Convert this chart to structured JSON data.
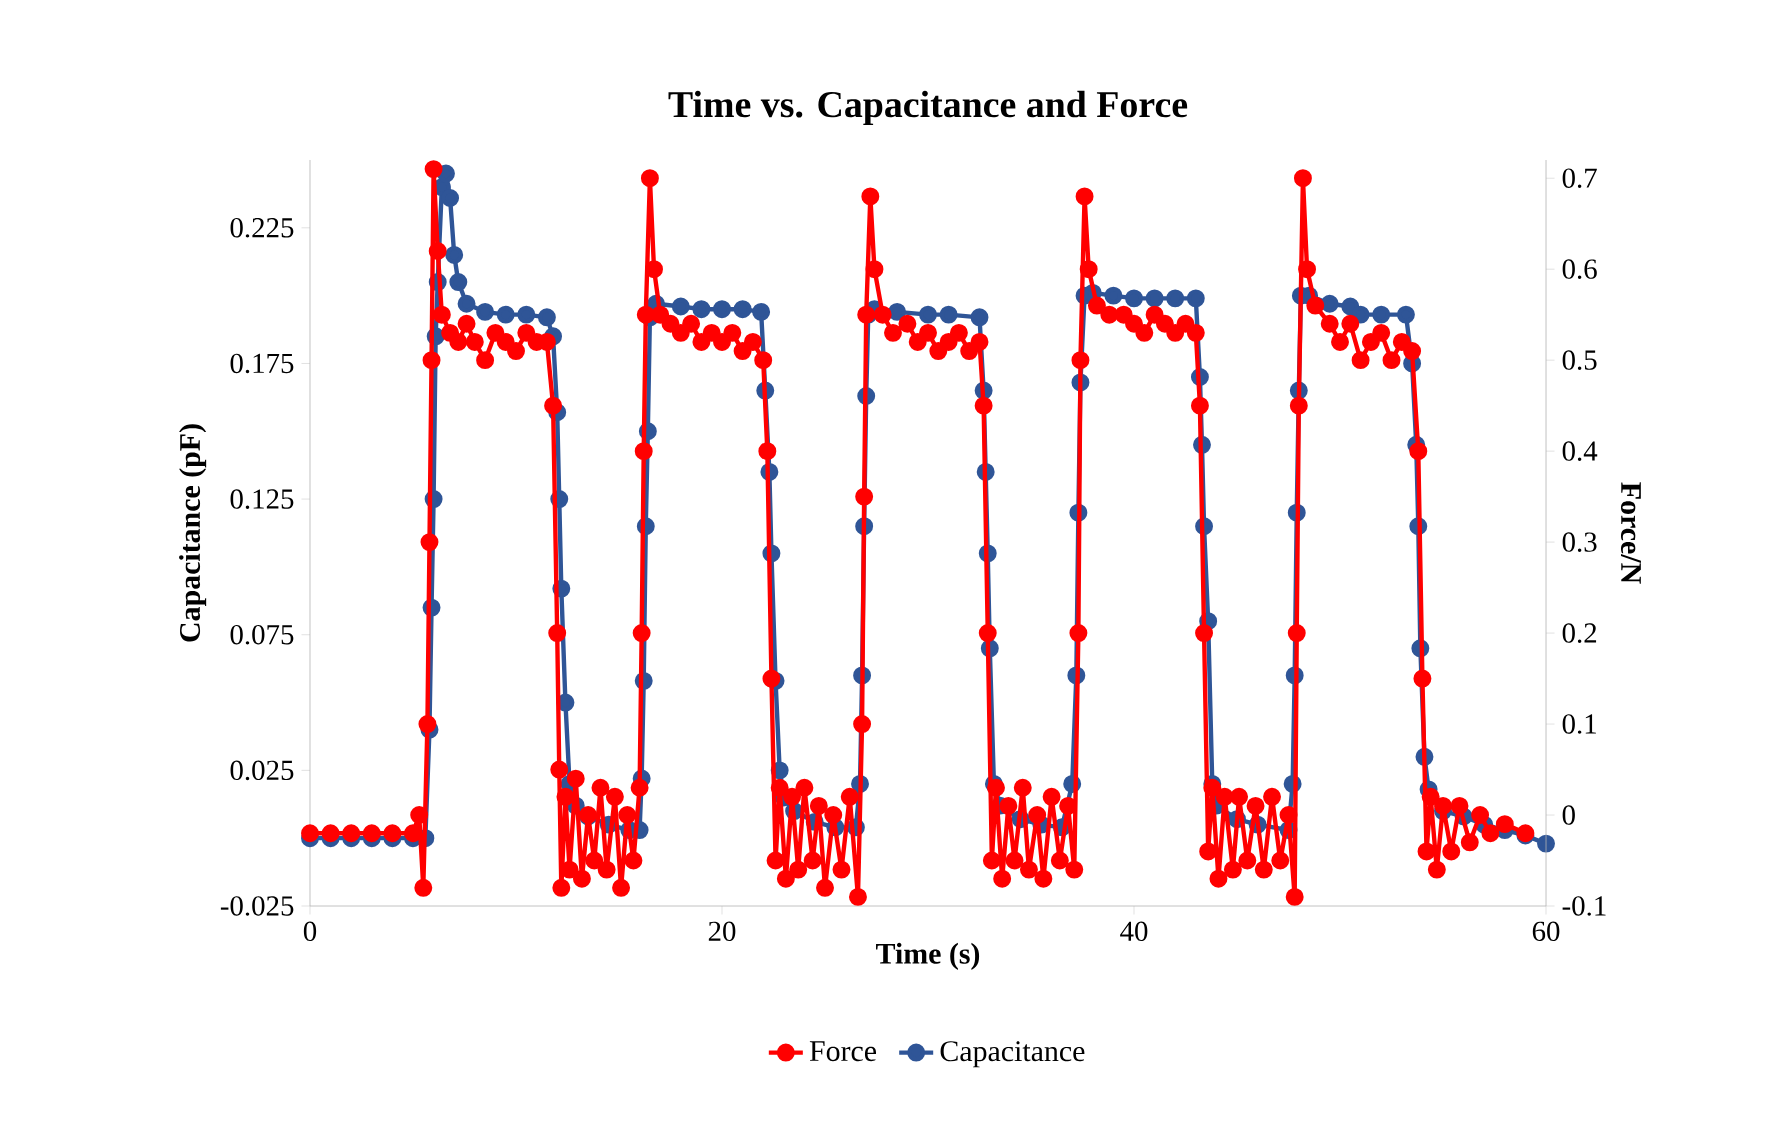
{
  "chart_data": {
    "type": "line",
    "title": "Time vs. Capacitance and Force",
    "xlabel": "Time (s)",
    "ylabel": "Capacitance (pF)",
    "y2label": "Force/N",
    "xlim": [
      0,
      60
    ],
    "xticks": [
      0,
      20,
      40,
      60
    ],
    "ylim": [
      -0.025,
      0.25
    ],
    "yticks": [
      -0.025,
      0.025,
      0.075,
      0.125,
      0.175,
      0.225
    ],
    "y2lim": [
      -0.1,
      0.72
    ],
    "y2ticks": [
      -0.1,
      0,
      0.1,
      0.2,
      0.3,
      0.4,
      0.5,
      0.6,
      0.7
    ],
    "legend": "bottom",
    "grid": false,
    "marker": "circle",
    "line_style": "solid",
    "series": [
      {
        "name": "Force",
        "color": "#ff0000",
        "axis": "y2",
        "x": [
          0,
          1,
          2,
          3,
          4,
          5,
          5.3,
          5.5,
          5.7,
          5.8,
          5.9,
          6.0,
          6.2,
          6.4,
          6.8,
          7.2,
          7.6,
          8,
          8.5,
          9,
          9.5,
          10,
          10.5,
          11,
          11.5,
          11.8,
          12.0,
          12.1,
          12.2,
          12.4,
          12.6,
          12.9,
          13.2,
          13.5,
          13.8,
          14.1,
          14.4,
          14.8,
          15.1,
          15.4,
          15.7,
          16.0,
          16.1,
          16.2,
          16.3,
          16.5,
          16.7,
          17,
          17.5,
          18,
          18.5,
          19,
          19.5,
          20,
          20.5,
          21,
          21.5,
          22,
          22.2,
          22.4,
          22.6,
          22.8,
          23.1,
          23.4,
          23.7,
          24.0,
          24.4,
          24.7,
          25.0,
          25.4,
          25.8,
          26.2,
          26.6,
          26.8,
          26.9,
          27.0,
          27.2,
          27.4,
          27.8,
          28.3,
          29,
          29.5,
          30,
          30.5,
          31,
          31.5,
          32,
          32.5,
          32.7,
          32.9,
          33.1,
          33.3,
          33.6,
          33.9,
          34.2,
          34.6,
          34.9,
          35.3,
          35.6,
          36,
          36.4,
          36.8,
          37.1,
          37.3,
          37.4,
          37.6,
          37.8,
          38.2,
          38.8,
          39.5,
          40,
          40.5,
          41,
          41.5,
          42,
          42.5,
          43,
          43.2,
          43.4,
          43.6,
          43.8,
          44.1,
          44.4,
          44.8,
          45.1,
          45.5,
          45.9,
          46.3,
          46.7,
          47.1,
          47.5,
          47.8,
          47.9,
          48.0,
          48.2,
          48.4,
          48.8,
          49.5,
          50,
          50.5,
          51,
          51.5,
          52,
          52.5,
          53,
          53.5,
          53.8,
          54.0,
          54.2,
          54.4,
          54.7,
          55,
          55.4,
          55.8,
          56.3,
          56.8,
          57.3,
          58,
          59
        ],
        "values": [
          -0.02,
          -0.02,
          -0.02,
          -0.02,
          -0.02,
          -0.02,
          0.0,
          -0.08,
          0.1,
          0.3,
          0.5,
          0.71,
          0.62,
          0.55,
          0.53,
          0.52,
          0.54,
          0.52,
          0.5,
          0.53,
          0.52,
          0.51,
          0.53,
          0.52,
          0.52,
          0.45,
          0.2,
          0.05,
          -0.08,
          0.02,
          -0.06,
          0.04,
          -0.07,
          0.0,
          -0.05,
          0.03,
          -0.06,
          0.02,
          -0.08,
          0.0,
          -0.05,
          0.03,
          0.2,
          0.4,
          0.55,
          0.7,
          0.6,
          0.55,
          0.54,
          0.53,
          0.54,
          0.52,
          0.53,
          0.52,
          0.53,
          0.51,
          0.52,
          0.5,
          0.4,
          0.15,
          -0.05,
          0.03,
          -0.07,
          0.02,
          -0.06,
          0.03,
          -0.05,
          0.01,
          -0.08,
          0.0,
          -0.06,
          0.02,
          -0.09,
          0.1,
          0.35,
          0.55,
          0.68,
          0.6,
          0.55,
          0.53,
          0.54,
          0.52,
          0.53,
          0.51,
          0.52,
          0.53,
          0.51,
          0.52,
          0.45,
          0.2,
          -0.05,
          0.03,
          -0.07,
          0.01,
          -0.05,
          0.03,
          -0.06,
          0.0,
          -0.07,
          0.02,
          -0.05,
          0.01,
          -0.06,
          0.2,
          0.5,
          0.68,
          0.6,
          0.56,
          0.55,
          0.55,
          0.54,
          0.53,
          0.55,
          0.54,
          0.53,
          0.54,
          0.53,
          0.45,
          0.2,
          -0.04,
          0.03,
          -0.07,
          0.02,
          -0.06,
          0.02,
          -0.05,
          0.01,
          -0.06,
          0.02,
          -0.05,
          0.0,
          -0.09,
          0.2,
          0.45,
          0.7,
          0.6,
          0.56,
          0.54,
          0.52,
          0.54,
          0.5,
          0.52,
          0.53,
          0.5,
          0.52,
          0.51,
          0.4,
          0.15,
          -0.04,
          0.02,
          -0.06,
          0.01,
          -0.04,
          0.01,
          -0.03,
          0.0,
          -0.02,
          -0.01,
          -0.02
        ]
      },
      {
        "name": "Capacitance",
        "color": "#2f5597",
        "x": [
          0,
          1,
          2,
          3,
          4,
          5,
          5.6,
          5.8,
          5.9,
          6.0,
          6.1,
          6.2,
          6.4,
          6.6,
          6.8,
          7.0,
          7.2,
          7.6,
          8.5,
          9.5,
          10.5,
          11.5,
          11.8,
          12.0,
          12.1,
          12.2,
          12.4,
          12.6,
          12.9,
          13.5,
          14.5,
          15.5,
          16.0,
          16.1,
          16.2,
          16.3,
          16.4,
          16.5,
          16.8,
          18,
          19,
          20,
          21,
          21.9,
          22.1,
          22.3,
          22.4,
          22.6,
          22.8,
          23.0,
          23.5,
          24.5,
          25.5,
          26.5,
          26.7,
          26.8,
          26.9,
          27.0,
          27.1,
          27.4,
          28.5,
          30,
          31,
          32.5,
          32.7,
          32.8,
          32.9,
          33.0,
          33.2,
          33.5,
          34.5,
          35.5,
          36.5,
          37.0,
          37.2,
          37.3,
          37.4,
          37.6,
          38,
          39,
          40,
          41,
          42,
          43.0,
          43.2,
          43.3,
          43.4,
          43.6,
          43.8,
          44,
          45,
          46,
          47.5,
          47.7,
          47.8,
          47.9,
          48.0,
          48.1,
          48.5,
          49.5,
          50.5,
          51,
          52,
          53.2,
          53.5,
          53.7,
          53.8,
          53.9,
          54.1,
          54.3,
          55,
          56,
          57,
          58,
          59,
          60
        ],
        "values": [
          0.0,
          0.0,
          0.0,
          0.0,
          0.0,
          0.0,
          0.0,
          0.04,
          0.085,
          0.125,
          0.185,
          0.205,
          0.24,
          0.245,
          0.236,
          0.215,
          0.205,
          0.197,
          0.194,
          0.193,
          0.193,
          0.192,
          0.185,
          0.157,
          0.125,
          0.092,
          0.05,
          0.02,
          0.012,
          0.008,
          0.005,
          0.003,
          0.003,
          0.022,
          0.058,
          0.115,
          0.15,
          0.192,
          0.197,
          0.196,
          0.195,
          0.195,
          0.195,
          0.194,
          0.165,
          0.135,
          0.105,
          0.058,
          0.025,
          0.015,
          0.01,
          0.006,
          0.004,
          0.004,
          0.02,
          0.06,
          0.115,
          0.163,
          0.193,
          0.195,
          0.194,
          0.193,
          0.193,
          0.192,
          0.165,
          0.135,
          0.105,
          0.07,
          0.02,
          0.012,
          0.007,
          0.005,
          0.004,
          0.02,
          0.06,
          0.12,
          0.168,
          0.2,
          0.201,
          0.2,
          0.199,
          0.199,
          0.199,
          0.199,
          0.17,
          0.145,
          0.115,
          0.08,
          0.02,
          0.012,
          0.007,
          0.005,
          0.003,
          0.02,
          0.06,
          0.12,
          0.165,
          0.2,
          0.2,
          0.197,
          0.196,
          0.193,
          0.193,
          0.193,
          0.175,
          0.145,
          0.115,
          0.07,
          0.03,
          0.018,
          0.01,
          0.008,
          0.005,
          0.003,
          0.001,
          -0.002
        ]
      }
    ]
  }
}
